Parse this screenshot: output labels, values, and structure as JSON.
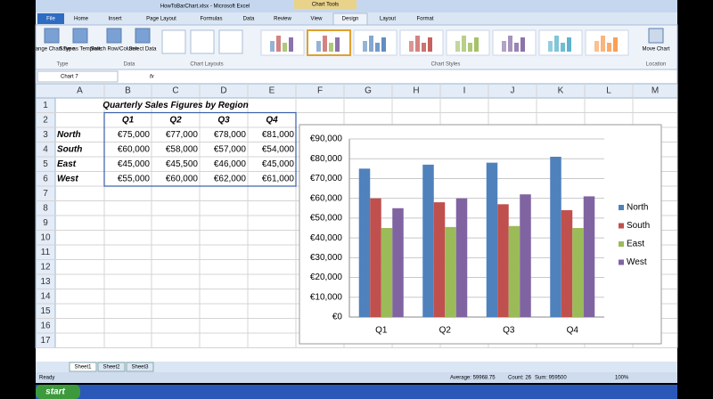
{
  "window": {
    "title": "HowToBarChart.xlsx - Microsoft Excel",
    "context_tab": "Chart Tools"
  },
  "ribbon": {
    "tabs": [
      "File",
      "Home",
      "Insert",
      "Page Layout",
      "Formulas",
      "Data",
      "Review",
      "View",
      "Design",
      "Layout",
      "Format"
    ],
    "buttons": [
      "Change Chart Type",
      "Save as Template",
      "Switch Row/Column",
      "Select Data",
      "Move Chart"
    ],
    "groups": [
      "Type",
      "Data",
      "Chart Layouts",
      "Chart Styles",
      "Location"
    ]
  },
  "formula_bar": {
    "name_box": "Chart 7",
    "fx": "fx"
  },
  "sheet": {
    "columns": [
      "A",
      "B",
      "C",
      "D",
      "E",
      "F",
      "G",
      "H",
      "I",
      "J",
      "K",
      "L",
      "M"
    ],
    "rows": [
      "1",
      "2",
      "3",
      "4",
      "5",
      "6",
      "7",
      "8",
      "9",
      "10",
      "11",
      "12",
      "13",
      "14",
      "15",
      "16",
      "17"
    ]
  },
  "table": {
    "title": "Quarterly Sales Figures by Region",
    "header": [
      "Q1",
      "Q2",
      "Q3",
      "Q4"
    ],
    "rows": [
      [
        "North",
        "€75,000",
        "€77,000",
        "€78,000",
        "€81,000"
      ],
      [
        "South",
        "€60,000",
        "€58,000",
        "€57,000",
        "€54,000"
      ],
      [
        "East",
        "€45,000",
        "€45,500",
        "€46,000",
        "€45,000"
      ],
      [
        "West",
        "€55,000",
        "€60,000",
        "€62,000",
        "€61,000"
      ]
    ]
  },
  "sheet_tabs": [
    "Sheet1",
    "Sheet2",
    "Sheet3"
  ],
  "status_bar": {
    "mode": "Ready",
    "average": "Average: 59968.75",
    "count": "Count: 26",
    "sum": "Sum: 959500",
    "zoom": "100%"
  },
  "taskbar": {
    "start": "start"
  },
  "chart_data": {
    "type": "bar",
    "categories": [
      "Q1",
      "Q2",
      "Q3",
      "Q4"
    ],
    "series": [
      {
        "name": "North",
        "color": "#4f81bd",
        "values": [
          75000,
          77000,
          78000,
          81000
        ]
      },
      {
        "name": "South",
        "color": "#c0504d",
        "values": [
          60000,
          58000,
          57000,
          54000
        ]
      },
      {
        "name": "East",
        "color": "#9bbb59",
        "values": [
          45000,
          45500,
          46000,
          45000
        ]
      },
      {
        "name": "West",
        "color": "#8064a2",
        "values": [
          55000,
          60000,
          62000,
          61000
        ]
      }
    ],
    "ylim": [
      0,
      90000
    ],
    "yticks": [
      {
        "value": 0,
        "label": "€0"
      },
      {
        "value": 10000,
        "label": "€10,000"
      },
      {
        "value": 20000,
        "label": "€20,000"
      },
      {
        "value": 30000,
        "label": "€30,000"
      },
      {
        "value": 40000,
        "label": "€40,000"
      },
      {
        "value": 50000,
        "label": "€50,000"
      },
      {
        "value": 60000,
        "label": "€60,000"
      },
      {
        "value": 70000,
        "label": "€70,000"
      },
      {
        "value": 80000,
        "label": "€80,000"
      },
      {
        "value": 90000,
        "label": "€90,000"
      }
    ],
    "grid": true,
    "legend": "right"
  }
}
